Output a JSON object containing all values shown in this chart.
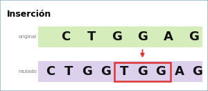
{
  "title": "Inserción",
  "original_label": "original",
  "mutado_label": "mutado",
  "original_seq": [
    "C",
    "T",
    "G",
    "G",
    "A",
    "G"
  ],
  "mutado_seq": [
    "C",
    "T",
    "G",
    "G",
    "T",
    "G",
    "G",
    "A",
    "G"
  ],
  "inserted_indices": [
    4,
    5,
    6
  ],
  "bg_color": "#ffffff",
  "border_color": "#9ab8cc",
  "title_color": "#000000",
  "label_color": "#777777",
  "seq_color": "#111111",
  "green_bg": "#d5edba",
  "purple_bg": "#ddd0ed",
  "insert_box_color": "#dd3333",
  "arrow_color": "#dd3333",
  "fig_width": 3.0,
  "fig_height": 1.31
}
